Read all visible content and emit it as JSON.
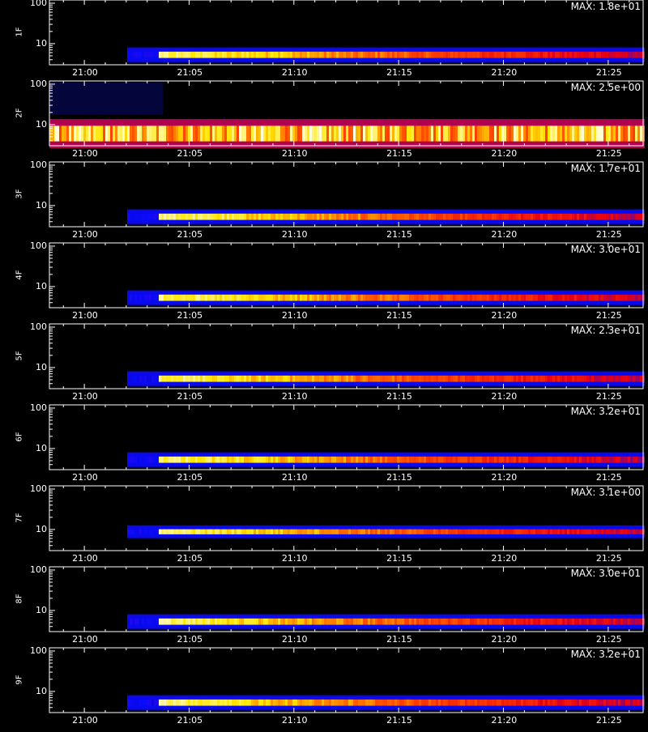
{
  "chart_data": {
    "type": "heatmap",
    "panel_ids": [
      "1F",
      "2F",
      "3F",
      "4F",
      "5F",
      "6F",
      "7F",
      "8F",
      "9F"
    ],
    "y_axis_scale": "log",
    "y_range": [
      3,
      120
    ],
    "y_tick_labels": [
      "100",
      "10"
    ],
    "y_tick_values": [
      100,
      10
    ],
    "x_range_minutes": [
      "20:58:20",
      "21:26:40"
    ],
    "x_tick_labels": [
      "21:00",
      "21:05",
      "21:10",
      "21:15",
      "21:20",
      "21:25"
    ],
    "colormap": "blue-red-yellow-white",
    "panels": [
      {
        "ylabel": "1F",
        "max_label": "MAX: 1.8e+01",
        "max": 18,
        "onset": "21:02",
        "bright_start": "21:03:30",
        "band": [
          4,
          7
        ],
        "noise": false
      },
      {
        "ylabel": "2F",
        "max_label": "MAX: 2.5e+00",
        "max": 2.5,
        "onset": "20:58",
        "bright_start": "20:58",
        "band": [
          3,
          12
        ],
        "noise": true
      },
      {
        "ylabel": "3F",
        "max_label": "MAX: 1.7e+01",
        "max": 17,
        "onset": "21:02",
        "bright_start": "21:03:30",
        "band": [
          4,
          7
        ],
        "noise": false
      },
      {
        "ylabel": "4F",
        "max_label": "MAX: 3.0e+01",
        "max": 30,
        "onset": "21:02",
        "bright_start": "21:03:30",
        "band": [
          4,
          7
        ],
        "noise": false
      },
      {
        "ylabel": "5F",
        "max_label": "MAX: 2.3e+01",
        "max": 23,
        "onset": "21:02",
        "bright_start": "21:03:30",
        "band": [
          4,
          7
        ],
        "noise": false
      },
      {
        "ylabel": "6F",
        "max_label": "MAX: 3.2e+01",
        "max": 32,
        "onset": "21:02",
        "bright_start": "21:03:30",
        "band": [
          4,
          7
        ],
        "noise": false
      },
      {
        "ylabel": "7F",
        "max_label": "MAX: 3.1e+00",
        "max": 3.1,
        "onset": "21:02",
        "bright_start": "21:03:30",
        "band": [
          7,
          11
        ],
        "noise": false
      },
      {
        "ylabel": "8F",
        "max_label": "MAX: 3.0e+01",
        "max": 30,
        "onset": "21:02",
        "bright_start": "21:03:30",
        "band": [
          4,
          7
        ],
        "noise": false
      },
      {
        "ylabel": "9F",
        "max_label": "MAX: 3.2e+01",
        "max": 32,
        "onset": "21:02",
        "bright_start": "21:03:30",
        "band": [
          4,
          7
        ],
        "noise": false
      }
    ]
  }
}
